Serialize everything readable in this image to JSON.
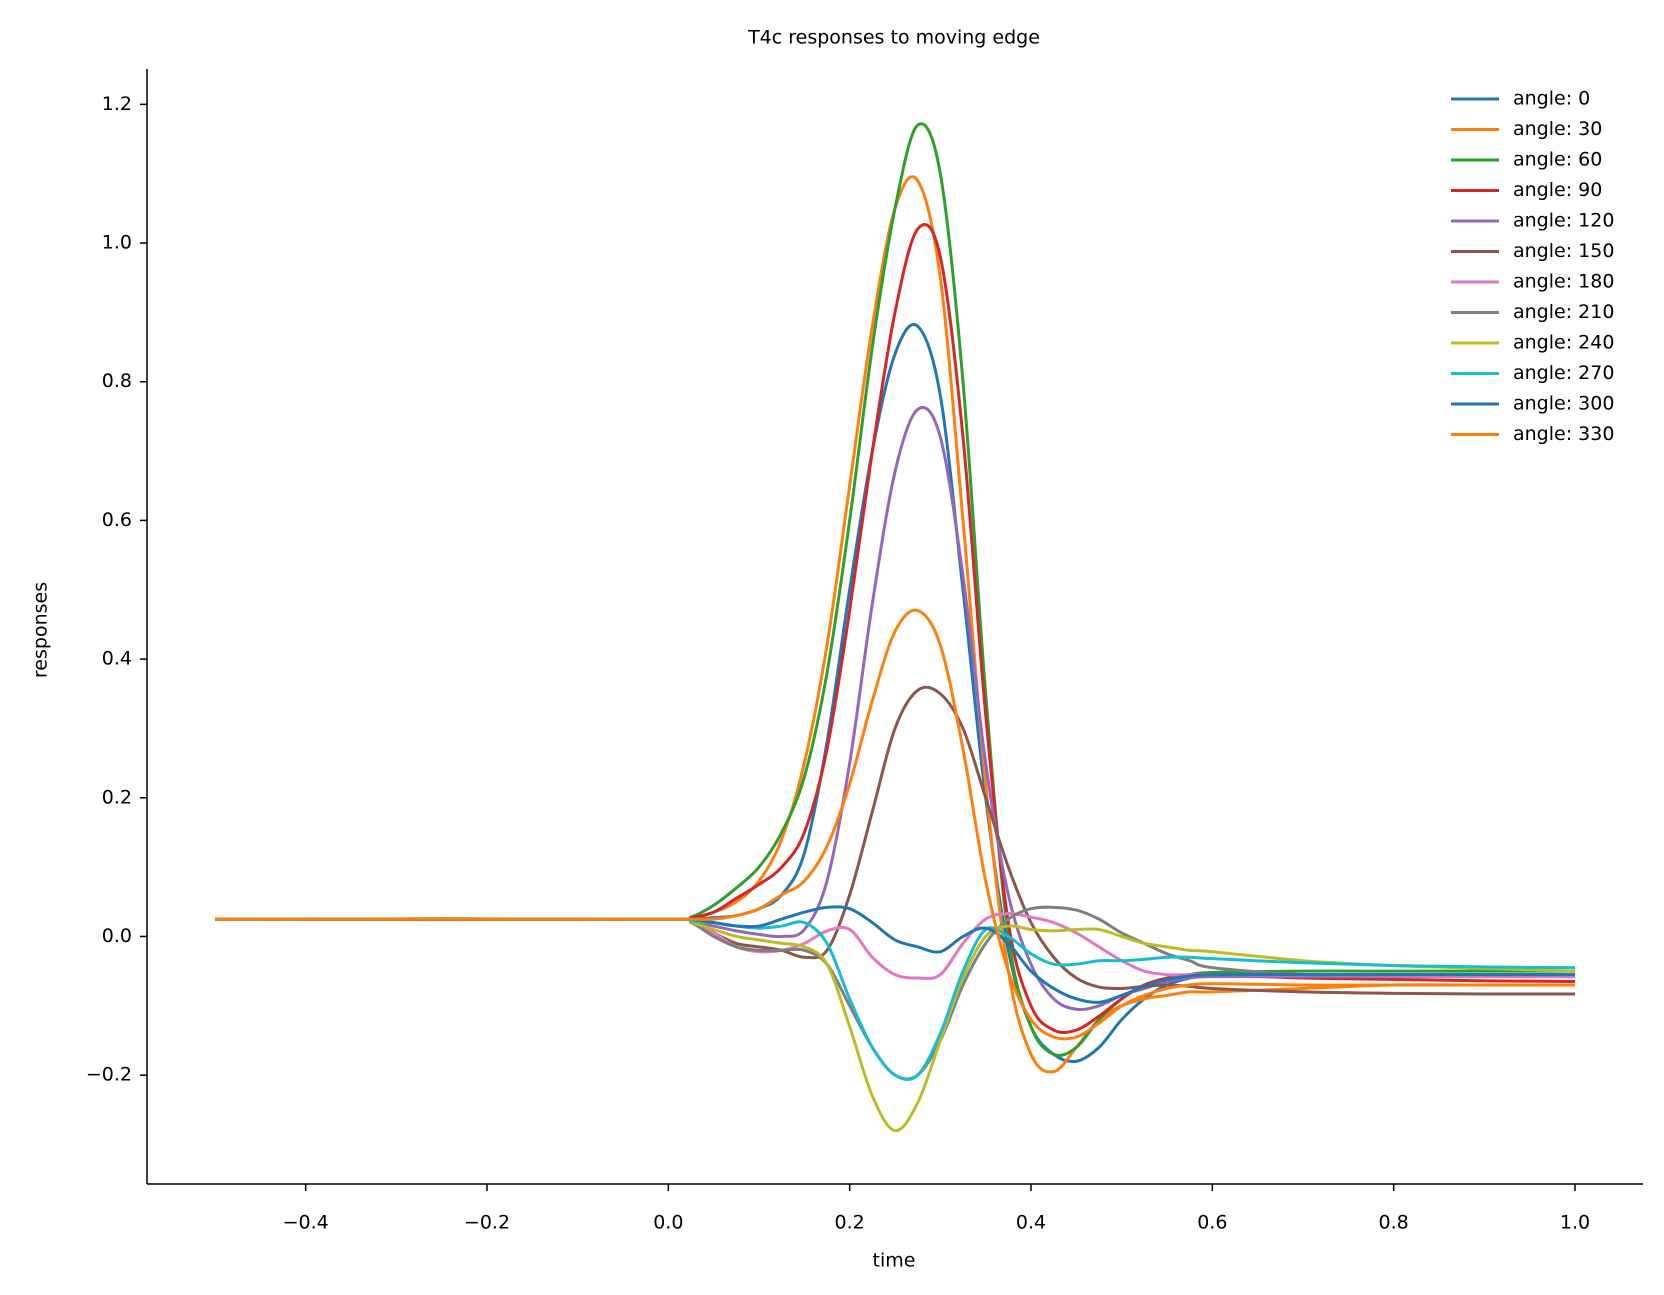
{
  "chart_data": {
    "type": "line",
    "title": "T4c responses to moving edge",
    "x_label": "time",
    "y_label": "responses",
    "x": [
      -0.5,
      0,
      0.025,
      0.05,
      0.075,
      0.1,
      0.125,
      0.15,
      0.175,
      0.2,
      0.225,
      0.25,
      0.275,
      0.3,
      0.325,
      0.35,
      0.375,
      0.4,
      0.425,
      0.45,
      0.475,
      0.5,
      0.525,
      0.55,
      0.575,
      0.6,
      0.7,
      0.8,
      0.9,
      1.0
    ],
    "xlim": [
      -0.575,
      1.075
    ],
    "xticks": [
      {
        "value": -0.4,
        "label": "−0.4"
      },
      {
        "value": -0.2,
        "label": "−0.2"
      },
      {
        "value": 0,
        "label": "0.0"
      },
      0.2,
      0.4,
      0.6,
      0.8,
      {
        "value": 1,
        "label": "1.0"
      }
    ],
    "ylim": [
      -0.357,
      1.251
    ],
    "yticks": [
      {
        "value": -0.2,
        "label": "−0.2"
      },
      {
        "value": 0,
        "label": "0.0"
      },
      0.2,
      0.4,
      0.6,
      0.8,
      {
        "value": 1,
        "label": "1.0"
      },
      1.2
    ],
    "legend": "upper right",
    "grid": false,
    "series": [
      {
        "name": "angle: 0",
        "color": "#1f77b4",
        "values": [
          0.025,
          0.025,
          0.025,
          0.027,
          0.03,
          0.04,
          0.06,
          0.12,
          0.28,
          0.5,
          0.7,
          0.84,
          0.88,
          0.78,
          0.5,
          0.2,
          -0.02,
          -0.13,
          -0.17,
          -0.18,
          -0.16,
          -0.12,
          -0.09,
          -0.07,
          -0.06,
          -0.055,
          -0.055,
          -0.055,
          -0.055,
          -0.055
        ]
      },
      {
        "name": "angle: 30",
        "color": "#ff7f0e",
        "values": [
          0.025,
          0.025,
          0.027,
          0.035,
          0.05,
          0.08,
          0.14,
          0.25,
          0.42,
          0.65,
          0.88,
          1.05,
          1.09,
          0.95,
          0.6,
          0.22,
          -0.05,
          -0.17,
          -0.195,
          -0.16,
          -0.12,
          -0.1,
          -0.09,
          -0.085,
          -0.08,
          -0.08,
          -0.075,
          -0.07,
          -0.07,
          -0.07
        ]
      },
      {
        "name": "angle: 60",
        "color": "#2ca02c",
        "values": [
          0.025,
          0.025,
          0.028,
          0.045,
          0.07,
          0.1,
          0.15,
          0.23,
          0.38,
          0.6,
          0.85,
          1.05,
          1.17,
          1.1,
          0.8,
          0.35,
          0.0,
          -0.13,
          -0.17,
          -0.16,
          -0.12,
          -0.09,
          -0.07,
          -0.06,
          -0.055,
          -0.052,
          -0.05,
          -0.05,
          -0.05,
          -0.05
        ]
      },
      {
        "name": "angle: 90",
        "color": "#d62728",
        "values": [
          0.025,
          0.025,
          0.027,
          0.035,
          0.055,
          0.075,
          0.1,
          0.15,
          0.27,
          0.47,
          0.7,
          0.9,
          1.02,
          0.98,
          0.72,
          0.32,
          0.02,
          -0.1,
          -0.135,
          -0.135,
          -0.115,
          -0.09,
          -0.07,
          -0.06,
          -0.055,
          -0.055,
          -0.06,
          -0.062,
          -0.064,
          -0.065
        ]
      },
      {
        "name": "angle: 120",
        "color": "#9467bd",
        "values": [
          0.025,
          0.025,
          0.022,
          0.015,
          0.008,
          0.003,
          0.0,
          0.01,
          0.08,
          0.25,
          0.48,
          0.67,
          0.76,
          0.72,
          0.52,
          0.25,
          0.06,
          -0.04,
          -0.09,
          -0.105,
          -0.1,
          -0.085,
          -0.075,
          -0.065,
          -0.06,
          -0.058,
          -0.058,
          -0.058,
          -0.058,
          -0.058
        ]
      },
      {
        "name": "angle: 150",
        "color": "#8c564b",
        "values": [
          0.025,
          0.025,
          0.02,
          0.005,
          -0.01,
          -0.015,
          -0.02,
          -0.03,
          -0.02,
          0.06,
          0.18,
          0.3,
          0.355,
          0.35,
          0.3,
          0.2,
          0.1,
          0.02,
          -0.03,
          -0.06,
          -0.073,
          -0.075,
          -0.072,
          -0.07,
          -0.072,
          -0.075,
          -0.08,
          -0.082,
          -0.083,
          -0.083
        ]
      },
      {
        "name": "angle: 180",
        "color": "#e377c2",
        "values": [
          0.025,
          0.025,
          0.02,
          0.005,
          -0.015,
          -0.022,
          -0.02,
          -0.01,
          0.008,
          0.01,
          -0.03,
          -0.055,
          -0.06,
          -0.055,
          -0.01,
          0.025,
          0.033,
          0.028,
          0.02,
          0.005,
          -0.015,
          -0.035,
          -0.05,
          -0.055,
          -0.055,
          -0.055,
          -0.056,
          -0.057,
          -0.058,
          -0.058
        ]
      },
      {
        "name": "angle: 210",
        "color": "#7f7f7f",
        "values": [
          0.025,
          0.025,
          0.02,
          0.0,
          -0.015,
          -0.02,
          -0.02,
          -0.02,
          -0.04,
          -0.1,
          -0.16,
          -0.2,
          -0.2,
          -0.15,
          -0.07,
          -0.01,
          0.025,
          0.04,
          0.042,
          0.038,
          0.025,
          0.005,
          -0.01,
          -0.025,
          -0.035,
          -0.045,
          -0.055,
          -0.055,
          -0.055,
          -0.055
        ]
      },
      {
        "name": "angle: 240",
        "color": "#bcbd22",
        "values": [
          0.025,
          0.025,
          0.02,
          0.01,
          0.0,
          -0.005,
          -0.01,
          -0.015,
          -0.04,
          -0.13,
          -0.23,
          -0.28,
          -0.24,
          -0.15,
          -0.06,
          0.0,
          0.015,
          0.01,
          0.008,
          0.01,
          0.01,
          0.0,
          -0.01,
          -0.015,
          -0.02,
          -0.022,
          -0.035,
          -0.042,
          -0.046,
          -0.05
        ]
      },
      {
        "name": "angle: 270",
        "color": "#17becf",
        "values": [
          0.025,
          0.025,
          0.022,
          0.02,
          0.015,
          0.012,
          0.015,
          0.02,
          -0.01,
          -0.09,
          -0.16,
          -0.2,
          -0.2,
          -0.14,
          -0.05,
          0.01,
          0.0,
          -0.025,
          -0.04,
          -0.04,
          -0.035,
          -0.035,
          -0.033,
          -0.03,
          -0.03,
          -0.032,
          -0.038,
          -0.042,
          -0.044,
          -0.045
        ]
      },
      {
        "name": "angle: 300",
        "color": "#1f77b4",
        "values": [
          0.025,
          0.025,
          0.025,
          0.02,
          0.015,
          0.015,
          0.025,
          0.035,
          0.042,
          0.04,
          0.02,
          -0.005,
          -0.015,
          -0.022,
          0.0,
          0.012,
          -0.01,
          -0.05,
          -0.075,
          -0.09,
          -0.095,
          -0.085,
          -0.072,
          -0.062,
          -0.057,
          -0.055,
          -0.055,
          -0.055,
          -0.055,
          -0.055
        ]
      },
      {
        "name": "angle: 330",
        "color": "#ff7f0e",
        "values": [
          0.025,
          0.025,
          0.025,
          0.025,
          0.03,
          0.04,
          0.06,
          0.08,
          0.13,
          0.22,
          0.34,
          0.44,
          0.47,
          0.42,
          0.27,
          0.08,
          -0.05,
          -0.12,
          -0.145,
          -0.145,
          -0.125,
          -0.1,
          -0.085,
          -0.075,
          -0.07,
          -0.068,
          -0.07,
          -0.07,
          -0.07,
          -0.07
        ]
      }
    ]
  }
}
